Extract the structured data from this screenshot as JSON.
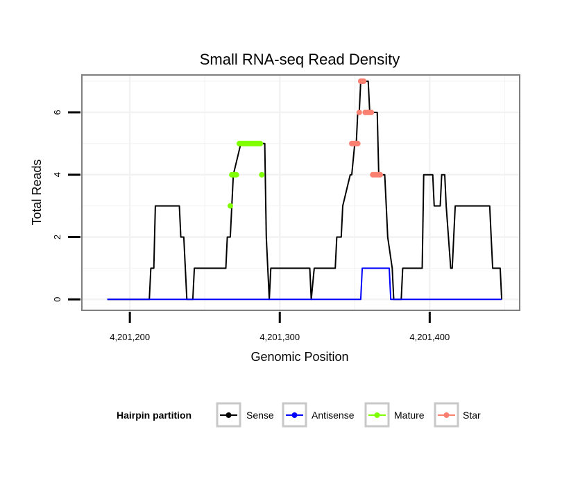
{
  "chart_data": {
    "type": "line",
    "title": "Small RNA-seq Read Density",
    "xlabel": "Genomic Position",
    "ylabel": "Total Reads",
    "xlim": [
      4201168,
      4201460
    ],
    "ylim": [
      -0.35,
      7.2
    ],
    "x_ticks": [
      4201200,
      4201300,
      4201400
    ],
    "x_tick_labels": [
      "4,201,200",
      "4,201,300",
      "4,201,400"
    ],
    "y_ticks": [
      0,
      2,
      4,
      6
    ],
    "y_tick_labels": [
      "0",
      "2",
      "4",
      "6"
    ],
    "legend": {
      "title": "Hairpin partition",
      "position": "bottom",
      "entries": [
        {
          "name": "Sense",
          "color": "#000000"
        },
        {
          "name": "Antisense",
          "color": "#0000ff"
        },
        {
          "name": "Mature",
          "color": "#7fff00"
        },
        {
          "name": "Star",
          "color": "#fa8072"
        }
      ]
    },
    "series": [
      {
        "name": "Sense",
        "color": "#000000",
        "x": [
          4201185,
          4201213,
          4201214,
          4201216,
          4201217,
          4201233,
          4201234,
          4201236,
          4201238,
          4201239,
          4201242,
          4201243,
          4201264,
          4201265,
          4201267,
          4201269,
          4201274,
          4201290,
          4201291,
          4201293,
          4201294,
          4201320,
          4201321,
          4201323,
          4201337,
          4201338,
          4201341,
          4201342,
          4201347,
          4201348,
          4201350,
          4201351,
          4201352,
          4201353,
          4201354,
          4201355,
          4201356,
          4201359,
          4201360,
          4201361,
          4201362,
          4201365,
          4201366,
          4201368,
          4201370,
          4201371,
          4201372,
          4201375,
          4201376,
          4201380,
          4201381,
          4201382,
          4201384,
          4201386,
          4201388,
          4201395,
          4201396,
          4201402,
          4201403,
          4201407,
          4201408,
          4201410,
          4201411,
          4201414,
          4201415,
          4201417,
          4201418,
          4201420,
          4201421,
          4201440,
          4201441,
          4201442,
          4201447,
          4201448
        ],
        "y": [
          0,
          0,
          1,
          1,
          3,
          3,
          2,
          2,
          0,
          0,
          0,
          1,
          1,
          2,
          2,
          4,
          5,
          5,
          2,
          0,
          1,
          1,
          0,
          1,
          1,
          2,
          2,
          3,
          4,
          4,
          5,
          5,
          6,
          6,
          7,
          7,
          7,
          7,
          6,
          6,
          6,
          6,
          4,
          4,
          4,
          3,
          2,
          1,
          0,
          0,
          0,
          1,
          1,
          1,
          1,
          1,
          4,
          4,
          3,
          3,
          4,
          4,
          3,
          1,
          1,
          3,
          3,
          3,
          3,
          3,
          2,
          1,
          1,
          0
        ]
      },
      {
        "name": "Antisense",
        "color": "#0000ff",
        "x": [
          4201185,
          4201354,
          4201355,
          4201373,
          4201374,
          4201448
        ],
        "y": [
          0,
          0,
          1,
          1,
          0,
          0
        ]
      },
      {
        "name": "Mature",
        "color": "#7fff00",
        "x": [
          4201267,
          4201268,
          4201269,
          4201270,
          4201271,
          4201273,
          4201274,
          4201275,
          4201276,
          4201277,
          4201278,
          4201279,
          4201280,
          4201281,
          4201282,
          4201283,
          4201284,
          4201285,
          4201286,
          4201287,
          4201288
        ],
        "y": [
          3,
          4,
          4,
          4,
          4,
          5,
          5,
          5,
          5,
          5,
          5,
          5,
          5,
          5,
          5,
          5,
          5,
          5,
          5,
          5,
          4
        ]
      },
      {
        "name": "Star",
        "color": "#fa8072",
        "x": [
          4201348,
          4201349,
          4201350,
          4201351,
          4201352,
          4201353,
          4201354,
          4201355,
          4201356,
          4201357,
          4201358,
          4201359,
          4201360,
          4201361,
          4201362,
          4201363,
          4201364,
          4201365,
          4201366,
          4201367
        ],
        "y": [
          5,
          5,
          5,
          5,
          5,
          6,
          7,
          7,
          7,
          6,
          6,
          6,
          6,
          6,
          4,
          4,
          4,
          4,
          4,
          4
        ]
      }
    ]
  }
}
